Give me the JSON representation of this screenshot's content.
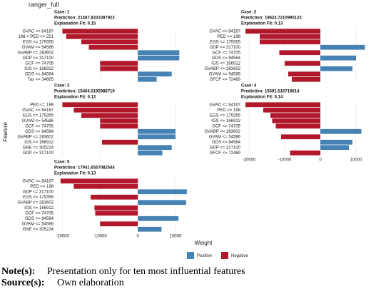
{
  "chart_data": {
    "type": "bar",
    "title": "ranger_full",
    "x_label": "Weight",
    "y_label": "Feature",
    "xlim": [
      -21800,
      13600
    ],
    "xticks": [
      -20000,
      -10000,
      0,
      10000
    ],
    "grid": true,
    "legend": [
      {
        "name": "Positive",
        "color": "#4682b4"
      },
      {
        "name": "Negative",
        "color": "#b2182b"
      }
    ],
    "panels": [
      {
        "case": "Case: 1",
        "prediction": "Prediction: 21487.8331087923",
        "fit": "Explanation Fit: 0.15",
        "categories": [
          "GVAC <= 84167",
          "198 < PED <= 251",
          "EGS <= 179355",
          "GVAM <= 54586",
          "GVABP <= 283602",
          "GDP <= 317100",
          "GCF <= 74705",
          "IGS <= 166912",
          "GDS <= 84564",
          "Tax <= 34665"
        ],
        "values": [
          -20000,
          -19000,
          -15000,
          -13000,
          11000,
          11000,
          -10000,
          -10000,
          9000,
          5000
        ]
      },
      {
        "case": "Case: 2",
        "prediction": "Prediction: 19624.7210995123",
        "fit": "Explanation Fit: 0.13",
        "categories": [
          "GVAC <= 84167",
          "PED <= 198",
          "EGS <= 179355",
          "GDP <= 317100",
          "GCF <= 74705",
          "GDS <= 84564",
          "IGS <= 166912",
          "GVABP <= 283602",
          "GVAM <= 54586",
          "GFCF <= 72469"
        ],
        "values": [
          -21000,
          -17000,
          -17000,
          12500,
          -11500,
          10000,
          -10000,
          9000,
          -9000,
          -8000
        ]
      },
      {
        "case": "Case: 3",
        "prediction": "Prediction: 15464.5192988719",
        "fit": "Explanation Fit: 0.12",
        "categories": [
          "PED <= 198",
          "GVAC <= 84167",
          "EGS <= 179355",
          "GVAM <= 54586",
          "GCF <= 74705",
          "GDS <= 84564",
          "GVABP <= 283602",
          "IGS <= 166912",
          "GNE <= 305224",
          "GDP <= 317100"
        ],
        "values": [
          -20000,
          -17000,
          -15000,
          -10000,
          -10000,
          10000,
          10000,
          -9500,
          9000,
          6500
        ]
      },
      {
        "case": "Case: 4",
        "prediction": "Prediction: 15591.516719614",
        "fit": "Explanation Fit: 0.14",
        "categories": [
          "GVAC <= 84167",
          "PED <= 198",
          "EGS <= 179355",
          "IGS <= 166912",
          "GCF <= 74705",
          "GVABP <= 283602",
          "GVAM <= 54586",
          "GDS <= 84564",
          "GDP <= 317100",
          "GFCF <= 72469"
        ],
        "values": [
          -21000,
          -16000,
          -14000,
          -13500,
          -12500,
          11500,
          -11000,
          9000,
          8000,
          -8500
        ]
      },
      {
        "case": "Case: 5",
        "prediction": "Prediction: 17941.6557082544",
        "fit": "Explanation Fit: 0.13",
        "categories": [
          "GVAC <= 84167",
          "PED <= 198",
          "GDP <= 317100",
          "EGS <= 179355",
          "GVABP <= 283602",
          "IGS <= 166912",
          "GCF <= 74705",
          "GDS <= 84564",
          "GVAM <= 54586",
          "GNE <= 305224"
        ],
        "values": [
          -20500,
          -17000,
          13000,
          -12500,
          12800,
          -11500,
          -11300,
          10800,
          -10000,
          6300
        ]
      }
    ]
  },
  "notes": {
    "note_label": "Note(s):",
    "note": "Presentation only for ten most influential features",
    "source_label": "Source(s):",
    "source": "Own elaboration"
  }
}
